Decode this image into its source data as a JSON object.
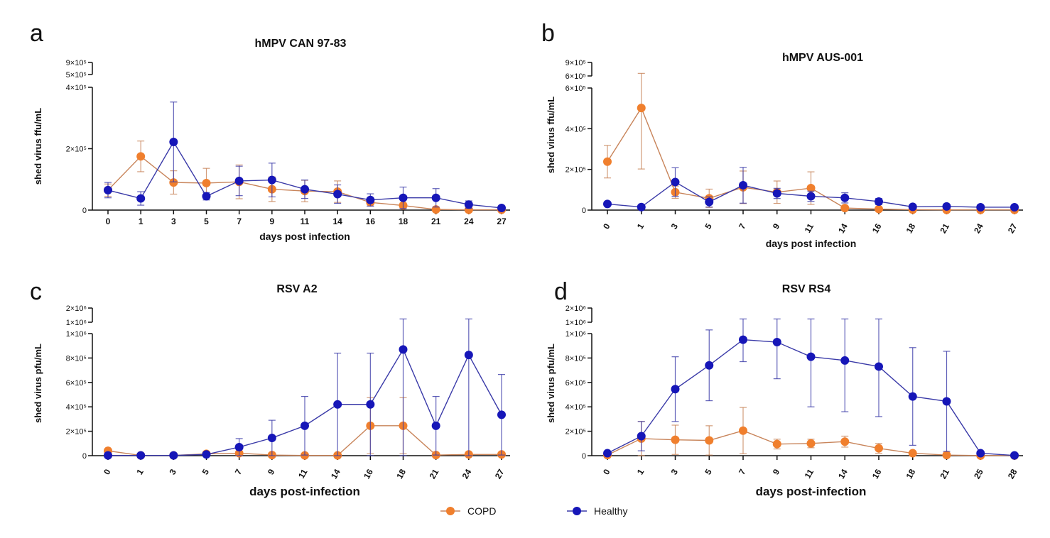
{
  "colors": {
    "copd": "#f07f2d",
    "healthy": "#1616b8",
    "copd_line": "#c8845a",
    "healthy_line": "#3a3aa8"
  },
  "legend": [
    {
      "label": "COPD",
      "series": "copd"
    },
    {
      "label": "Healthy",
      "series": "healthy"
    }
  ],
  "chart_data": [
    {
      "id": "a",
      "panel_label": "a",
      "type": "line",
      "title": "hMPV CAN 97-83",
      "xlabel": "days post infection",
      "ylabel": "shed virus ffu/mL",
      "x": [
        "0",
        "1",
        "3",
        "5",
        "7",
        "9",
        "11",
        "14",
        "16",
        "18",
        "21",
        "24",
        "27"
      ],
      "rotate_x": false,
      "ylim": [
        0,
        400000
      ],
      "y_ticks": [
        {
          "value": 0,
          "label": "0"
        },
        {
          "value": 200000,
          "label": "2×10⁵"
        },
        {
          "value": 400000,
          "label": "4×10⁵"
        }
      ],
      "broken_axis_labels": [
        "9×10⁵",
        "5×10⁵"
      ],
      "series": [
        {
          "name": "COPD",
          "key": "copd",
          "values": [
            65000,
            175000,
            90000,
            88000,
            92000,
            68000,
            62000,
            60000,
            25000,
            15000,
            2000,
            1000,
            1000
          ],
          "errors": [
            20000,
            50000,
            38000,
            48000,
            55000,
            40000,
            35000,
            35000,
            12000,
            8000,
            2000,
            1000,
            1000
          ]
        },
        {
          "name": "Healthy",
          "key": "healthy",
          "values": [
            65000,
            38000,
            222000,
            45000,
            95000,
            98000,
            68000,
            52000,
            33000,
            40000,
            40000,
            18000,
            7000
          ],
          "errors": [
            25000,
            22000,
            130000,
            12000,
            48000,
            55000,
            30000,
            30000,
            20000,
            35000,
            30000,
            12000,
            4000
          ]
        }
      ]
    },
    {
      "id": "b",
      "panel_label": "b",
      "type": "line",
      "title": "hMPV AUS-001",
      "xlabel": "days post infection",
      "ylabel": "shed virus ffu/mL",
      "x": [
        "0",
        "1",
        "3",
        "5",
        "7",
        "9",
        "11",
        "14",
        "16",
        "18",
        "21",
        "24",
        "27"
      ],
      "rotate_x": true,
      "ylim": [
        0,
        600000
      ],
      "y_ticks": [
        {
          "value": 0,
          "label": "0"
        },
        {
          "value": 200000,
          "label": "2×10⁵"
        },
        {
          "value": 400000,
          "label": "4×10⁵"
        },
        {
          "value": 600000,
          "label": "6×10⁵"
        }
      ],
      "broken_axis_labels": [
        "9×10⁵",
        "6×10⁵"
      ],
      "series": [
        {
          "name": "COPD",
          "key": "copd",
          "values": [
            238000,
            502000,
            88000,
            58000,
            112000,
            88000,
            108000,
            10000,
            5000,
            2000,
            1000,
            1000,
            1000
          ],
          "errors": [
            80000,
            300000,
            30000,
            45000,
            80000,
            55000,
            80000,
            8000,
            5000,
            2000,
            1000,
            1000,
            1000
          ]
        },
        {
          "name": "Healthy",
          "key": "healthy",
          "values": [
            30000,
            15000,
            138000,
            40000,
            122000,
            82000,
            68000,
            60000,
            42000,
            16000,
            18000,
            14000,
            14000
          ],
          "errors": [
            8000,
            5000,
            70000,
            25000,
            88000,
            25000,
            25000,
            25000,
            15000,
            6000,
            6000,
            5000,
            5000
          ]
        }
      ]
    },
    {
      "id": "c",
      "panel_label": "c",
      "type": "line",
      "title": "RSV A2",
      "xlabel": "days post-infection",
      "ylabel": "shed virus pfu/mL",
      "x": [
        "0",
        "1",
        "3",
        "5",
        "7",
        "9",
        "11",
        "14",
        "16",
        "18",
        "21",
        "24",
        "27"
      ],
      "rotate_x": true,
      "ylim": [
        0,
        1000000
      ],
      "y_ticks": [
        {
          "value": 0,
          "label": "0"
        },
        {
          "value": 200000,
          "label": "2×10⁵"
        },
        {
          "value": 400000,
          "label": "4×10⁵"
        },
        {
          "value": 600000,
          "label": "6×10⁵"
        },
        {
          "value": 800000,
          "label": "8×10⁵"
        },
        {
          "value": 1000000,
          "label": "1×10⁶"
        }
      ],
      "broken_axis_labels": [
        "2×10⁶",
        "1×10⁶"
      ],
      "series": [
        {
          "name": "COPD",
          "key": "copd",
          "values": [
            40000,
            2000,
            2000,
            15000,
            20000,
            5000,
            2000,
            2000,
            245000,
            245000,
            5000,
            10000,
            10000
          ],
          "errors": [
            10000,
            2000,
            2000,
            5000,
            5000,
            3000,
            2000,
            2000,
            230000,
            230000,
            5000,
            5000,
            5000
          ]
        },
        {
          "name": "Healthy",
          "key": "healthy",
          "values": [
            2000,
            2000,
            2000,
            10000,
            70000,
            145000,
            245000,
            420000,
            420000,
            870000,
            245000,
            825000,
            335000
          ],
          "errors": [
            1000,
            1000,
            1000,
            5000,
            70000,
            145000,
            240000,
            420000,
            420000,
            1100000,
            240000,
            1100000,
            330000
          ]
        }
      ]
    },
    {
      "id": "d",
      "panel_label": "d",
      "type": "line",
      "title": "RSV RS4",
      "xlabel": "days post-infection",
      "ylabel": "shed virus pfu/mL",
      "x": [
        "0",
        "1",
        "3",
        "5",
        "7",
        "9",
        "11",
        "14",
        "16",
        "18",
        "21",
        "25",
        "28"
      ],
      "rotate_x": true,
      "ylim": [
        0,
        1000000
      ],
      "y_ticks": [
        {
          "value": 0,
          "label": "0"
        },
        {
          "value": 200000,
          "label": "2×10⁵"
        },
        {
          "value": 400000,
          "label": "4×10⁵"
        },
        {
          "value": 600000,
          "label": "6×10⁵"
        },
        {
          "value": 800000,
          "label": "8×10⁵"
        },
        {
          "value": 1000000,
          "label": "1×10⁶"
        }
      ],
      "broken_axis_labels": [
        "2×10⁶",
        "1×10⁶"
      ],
      "series": [
        {
          "name": "COPD",
          "key": "copd",
          "values": [
            5000,
            140000,
            130000,
            125000,
            205000,
            95000,
            100000,
            115000,
            60000,
            20000,
            5000,
            1000,
            1000
          ],
          "errors": [
            3000,
            140000,
            120000,
            120000,
            190000,
            40000,
            35000,
            45000,
            40000,
            15000,
            5000,
            1000,
            1000
          ]
        },
        {
          "name": "Healthy",
          "key": "healthy",
          "values": [
            20000,
            160000,
            545000,
            740000,
            950000,
            930000,
            810000,
            780000,
            730000,
            485000,
            445000,
            20000,
            2000
          ],
          "errors": [
            10000,
            120000,
            265000,
            290000,
            180000,
            300000,
            410000,
            420000,
            410000,
            400000,
            410000,
            10000,
            1000
          ]
        }
      ]
    }
  ]
}
